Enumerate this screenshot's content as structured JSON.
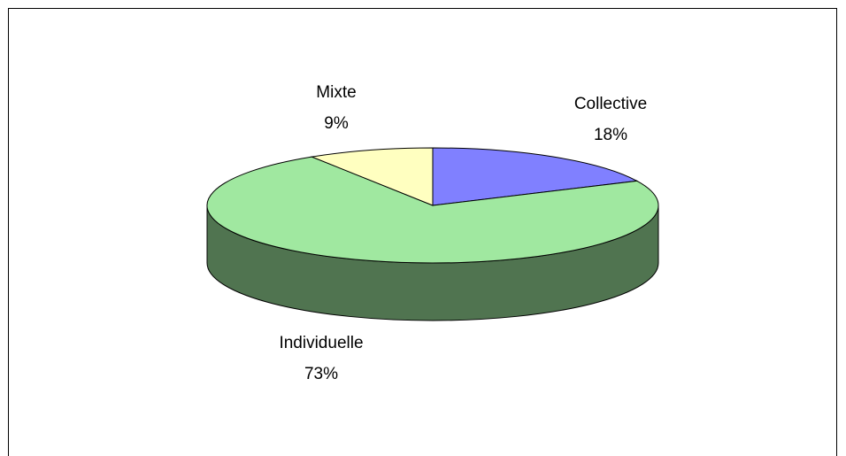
{
  "chart_data": {
    "type": "pie3d",
    "categories": [
      "Collective",
      "Individuelle",
      "Mixte"
    ],
    "values": [
      18,
      73,
      9
    ],
    "value_labels": [
      "18%",
      "73%",
      "9%"
    ],
    "colors": [
      "#8080ff",
      "#a0e8a0",
      "#ffffc0"
    ]
  }
}
